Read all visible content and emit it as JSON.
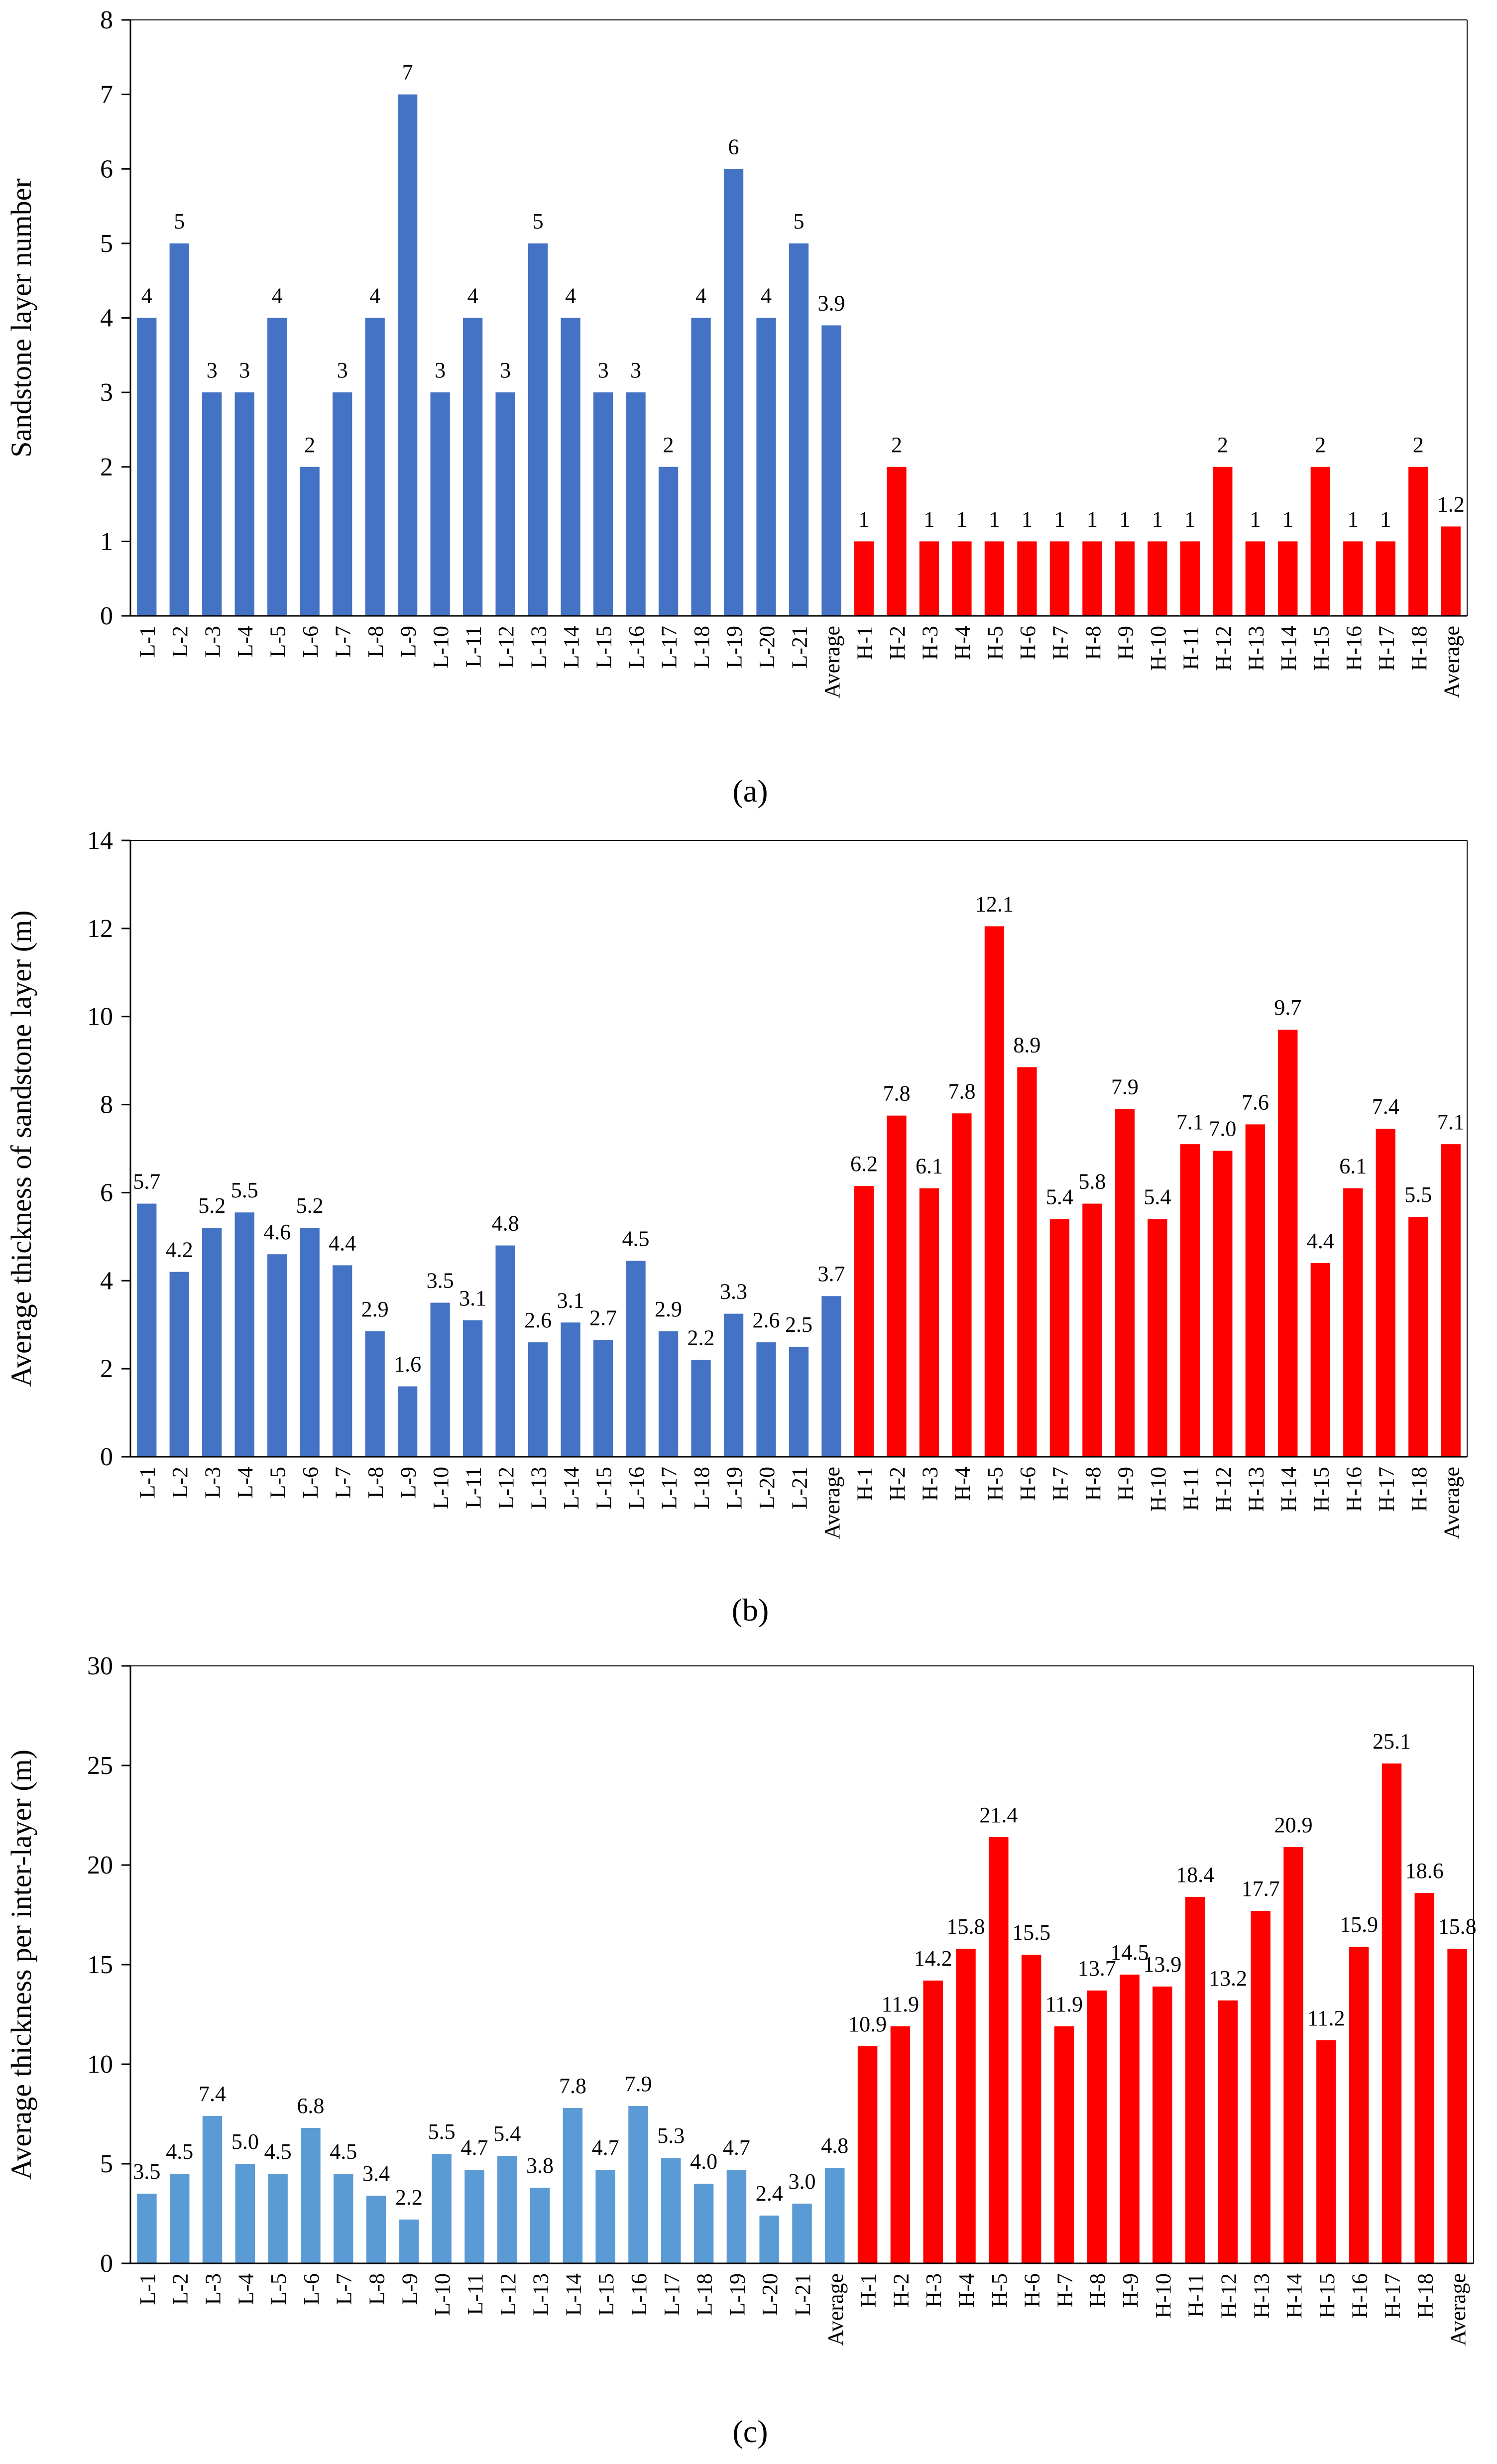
{
  "chart_data": [
    {
      "type": "bar",
      "panel_label": "(a)",
      "title": "",
      "xlabel": "",
      "ylabel": "Sandstone layer number",
      "ylim": [
        0,
        8
      ],
      "ytick_step": 1,
      "grid": false,
      "categories": [
        "L-1",
        "L-2",
        "L-3",
        "L-4",
        "L-5",
        "L-6",
        "L-7",
        "L-8",
        "L-9",
        "L-10",
        "L-11",
        "L-12",
        "L-13",
        "L-14",
        "L-15",
        "L-16",
        "L-17",
        "L-18",
        "L-19",
        "L-20",
        "L-21",
        "Average",
        "H-1",
        "H-2",
        "H-3",
        "H-4",
        "H-5",
        "H-6",
        "H-7",
        "H-8",
        "H-9",
        "H-10",
        "H-11",
        "H-12",
        "H-13",
        "H-14",
        "H-15",
        "H-16",
        "H-17",
        "H-18",
        "Average"
      ],
      "values": [
        4,
        5,
        3,
        3,
        4,
        2,
        3,
        4,
        7,
        3,
        4,
        3,
        5,
        4,
        3,
        3,
        2,
        4,
        6,
        4,
        5,
        3.9,
        1,
        2,
        1,
        1,
        1,
        1,
        1,
        1,
        1,
        1,
        1,
        2,
        1,
        1,
        2,
        1,
        1,
        2,
        1.2
      ],
      "labels": [
        "4",
        "5",
        "3",
        "3",
        "4",
        "2",
        "3",
        "4",
        "7",
        "3",
        "4",
        "3",
        "5",
        "4",
        "3",
        "3",
        "2",
        "4",
        "6",
        "4",
        "5",
        "3.9",
        "1",
        "2",
        "1",
        "1",
        "1",
        "1",
        "1",
        "1",
        "1",
        "1",
        "1",
        "2",
        "1",
        "1",
        "2",
        "1",
        "1",
        "2",
        "1.2"
      ],
      "series_split": 22,
      "colors": {
        "low": "#4472C4",
        "high": "#FF0000"
      }
    },
    {
      "type": "bar",
      "panel_label": "(b)",
      "title": "",
      "xlabel": "",
      "ylabel": "Average thickness of sandstone layer (m)",
      "ylim": [
        0,
        14
      ],
      "ytick_step": 2,
      "grid": false,
      "categories": [
        "L-1",
        "L-2",
        "L-3",
        "L-4",
        "L-5",
        "L-6",
        "L-7",
        "L-8",
        "L-9",
        "L-10",
        "L-11",
        "L-12",
        "L-13",
        "L-14",
        "L-15",
        "L-16",
        "L-17",
        "L-18",
        "L-19",
        "L-20",
        "L-21",
        "Average",
        "H-1",
        "H-2",
        "H-3",
        "H-4",
        "H-5",
        "H-6",
        "H-7",
        "H-8",
        "H-9",
        "H-10",
        "H-11",
        "H-12",
        "H-13",
        "H-14",
        "H-15",
        "H-16",
        "H-17",
        "H-18",
        "Average"
      ],
      "values": [
        5.75,
        4.2,
        5.2,
        5.55,
        4.6,
        5.2,
        4.35,
        2.85,
        1.6,
        3.5,
        3.1,
        4.8,
        2.6,
        3.05,
        2.65,
        4.45,
        2.85,
        2.2,
        3.25,
        2.6,
        2.5,
        3.65,
        6.15,
        7.75,
        6.1,
        7.8,
        12.05,
        8.85,
        5.4,
        5.75,
        7.9,
        5.4,
        7.1,
        6.95,
        7.55,
        9.7,
        4.4,
        6.1,
        7.45,
        5.45,
        7.1
      ],
      "labels": [
        "5.7",
        "4.2",
        "5.2",
        "5.5",
        "4.6",
        "5.2",
        "4.4",
        "2.9",
        "1.6",
        "3.5",
        "3.1",
        "4.8",
        "2.6",
        "3.1",
        "2.7",
        "4.5",
        "2.9",
        "2.2",
        "3.3",
        "2.6",
        "2.5",
        "3.7",
        "6.2",
        "7.8",
        "6.1",
        "7.8",
        "12.1",
        "8.9",
        "5.4",
        "5.8",
        "7.9",
        "5.4",
        "7.1",
        "7.0",
        "7.6",
        "9.7",
        "4.4",
        "6.1",
        "7.4",
        "5.5",
        "7.1"
      ],
      "series_split": 22,
      "colors": {
        "low": "#4472C4",
        "high": "#FF0000"
      }
    },
    {
      "type": "bar",
      "panel_label": "(c)",
      "title": "",
      "xlabel": "",
      "ylabel": "Average thickness per inter-layer (m)",
      "ylim": [
        0,
        30
      ],
      "ytick_step": 5,
      "grid": false,
      "categories": [
        "L-1",
        "L-2",
        "L-3",
        "L-4",
        "L-5",
        "L-6",
        "L-7",
        "L-8",
        "L-9",
        "L-10",
        "L-11",
        "L-12",
        "L-13",
        "L-14",
        "L-15",
        "L-16",
        "L-17",
        "L-18",
        "L-19",
        "L-20",
        "L-21",
        "Average",
        "H-1",
        "H-2",
        "H-3",
        "H-4",
        "H-5",
        "H-6",
        "H-7",
        "H-8",
        "H-9",
        "H-10",
        "H-11",
        "H-12",
        "H-13",
        "H-14",
        "H-15",
        "H-16",
        "H-17",
        "H-18",
        "Average"
      ],
      "values": [
        3.5,
        4.5,
        7.4,
        5.0,
        4.5,
        6.8,
        4.5,
        3.4,
        2.2,
        5.5,
        4.7,
        5.4,
        3.8,
        7.8,
        4.7,
        7.9,
        5.3,
        4.0,
        4.7,
        2.4,
        3.0,
        4.8,
        10.9,
        11.9,
        14.2,
        15.8,
        21.4,
        15.5,
        11.9,
        13.7,
        14.5,
        13.9,
        18.4,
        13.2,
        17.7,
        20.9,
        11.2,
        15.9,
        25.1,
        18.6,
        15.8
      ],
      "labels": [
        "3.5",
        "4.5",
        "7.4",
        "5.0",
        "4.5",
        "6.8",
        "4.5",
        "3.4",
        "2.2",
        "5.5",
        "4.7",
        "5.4",
        "3.8",
        "7.8",
        "4.7",
        "7.9",
        "5.3",
        "4.0",
        "4.7",
        "2.4",
        "3.0",
        "4.8",
        "10.9",
        "11.9",
        "14.2",
        "15.8",
        "21.4",
        "15.5",
        "11.9",
        "13.7",
        "14.5",
        "13.9",
        "18.4",
        "13.2",
        "17.7",
        "20.9",
        "11.2",
        "15.9",
        "25.1",
        "18.6",
        "15.8"
      ],
      "series_split": 22,
      "colors": {
        "low": "#5B9BD5",
        "high": "#FF0000"
      }
    }
  ]
}
